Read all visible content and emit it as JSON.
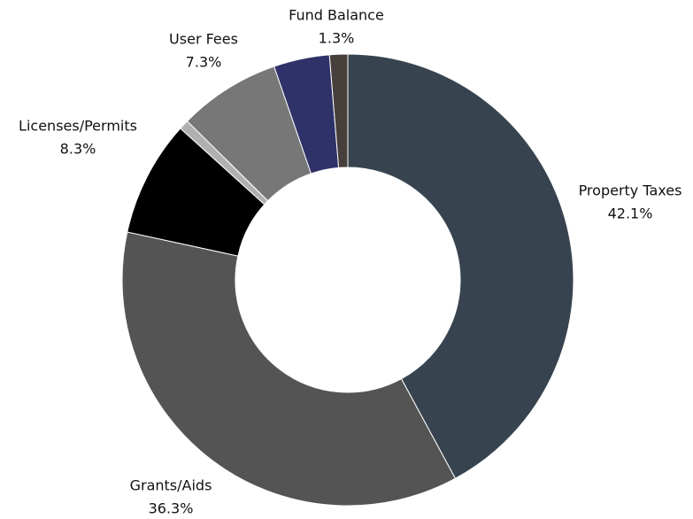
{
  "chart_data": {
    "type": "donut",
    "categories": [
      "Property Taxes",
      "Grants/Aids",
      "Licenses/Permits",
      null,
      "User Fees",
      null,
      "Fund Balance"
    ],
    "values": [
      42.1,
      36.3,
      8.3,
      0.7,
      7.3,
      4.0,
      1.3
    ],
    "value_labels": [
      "42.1%",
      "36.3%",
      "8.3%",
      null,
      "7.3%",
      null,
      "1.3%"
    ],
    "colors": [
      "#37444f",
      "#545454",
      "#000000",
      "#b0b0ae",
      "#777777",
      "#2f3268",
      "#463f3b"
    ]
  }
}
